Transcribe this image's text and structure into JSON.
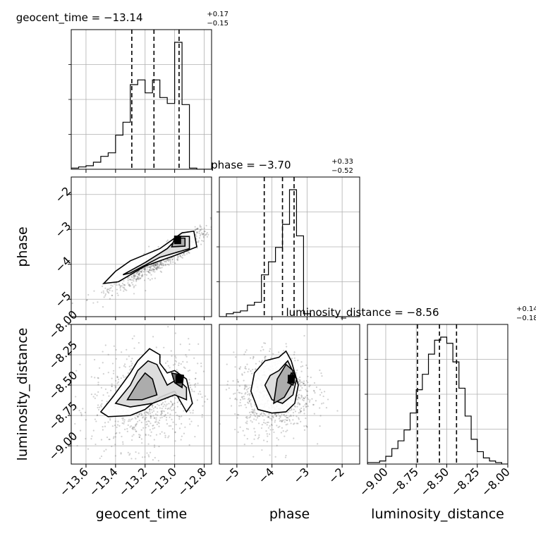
{
  "chart_data": {
    "type": "corner",
    "parameters": [
      "geocent_time",
      "phase",
      "luminosity_distance"
    ],
    "axis_labels": [
      "geocent_time",
      "phase",
      "luminosity_distance"
    ],
    "ranges": [
      [
        -13.7,
        -12.75
      ],
      [
        -5.5,
        -1.5
      ],
      [
        -9.15,
        -8.0
      ]
    ],
    "ticks": [
      {
        "values": [
          -13.6,
          -13.4,
          -13.2,
          -13.0,
          -12.8
        ],
        "labels": [
          "−13.6",
          "−13.4",
          "−13.2",
          "−13.0",
          "−12.8"
        ]
      },
      {
        "values": [
          -5,
          -4,
          -3,
          -2
        ],
        "labels": [
          "−5",
          "−4",
          "−3",
          "−2"
        ]
      },
      {
        "values": [
          -9.0,
          -8.75,
          -8.5,
          -8.25,
          -8.0
        ],
        "labels": [
          "−9.00",
          "−8.75",
          "−8.50",
          "−8.25",
          "−8.00"
        ]
      }
    ],
    "titles": [
      {
        "prefix": "geocent_time = −13.14",
        "sup": "+0.17",
        "sub": "−0.15"
      },
      {
        "prefix": "phase = −3.70",
        "sup": "+0.33",
        "sub": "−0.52"
      },
      {
        "prefix": "luminosity_distance = −8.56",
        "sup": "+0.14",
        "sub": "−0.18"
      }
    ],
    "quantiles": [
      [
        -13.29,
        -13.14,
        -12.97
      ],
      [
        -4.22,
        -3.7,
        -3.37
      ],
      [
        -8.74,
        -8.56,
        -8.42
      ]
    ],
    "histograms": [
      {
        "edges": [
          -13.7,
          -13.65,
          -13.6,
          -13.55,
          -13.5,
          -13.45,
          -13.4,
          -13.35,
          -13.3,
          -13.25,
          -13.2,
          -13.15,
          -13.1,
          -13.05,
          -13.0,
          -12.95,
          -12.9,
          -12.85,
          -12.8,
          -12.75
        ],
        "counts": [
          1,
          2,
          3,
          6,
          11,
          14,
          29,
          40,
          72,
          76,
          65,
          76,
          61,
          56,
          108,
          55,
          1,
          0,
          0
        ]
      },
      {
        "edges": [
          -5.5,
          -5.3,
          -5.1,
          -4.9,
          -4.7,
          -4.5,
          -4.3,
          -4.1,
          -3.9,
          -3.7,
          -3.5,
          -3.3,
          -3.1,
          -2.9,
          -2.7,
          -2.5,
          -2.3,
          -2.1,
          -1.9,
          -1.7,
          -1.5
        ],
        "counts": [
          0,
          2,
          3,
          4,
          8,
          10,
          29,
          38,
          48,
          64,
          88,
          56,
          2,
          0,
          0,
          0,
          0,
          0,
          0,
          0
        ]
      },
      {
        "edges": [
          -9.15,
          -9.1,
          -9.05,
          -9.0,
          -8.95,
          -8.9,
          -8.85,
          -8.8,
          -8.75,
          -8.7,
          -8.65,
          -8.6,
          -8.55,
          -8.5,
          -8.45,
          -8.4,
          -8.35,
          -8.3,
          -8.25,
          -8.2,
          -8.15,
          -8.1,
          -8.05,
          -8.0
        ],
        "counts": [
          1,
          1,
          2,
          5,
          10,
          15,
          22,
          33,
          48,
          58,
          71,
          80,
          82,
          78,
          66,
          49,
          31,
          16,
          8,
          4,
          2,
          1,
          0
        ]
      }
    ],
    "scatter": [
      {
        "x": 0,
        "y": 1,
        "mean": [
          -13.1,
          -3.85
        ],
        "sd": [
          0.17,
          0.45
        ],
        "corr": 0.93,
        "count": 900
      },
      {
        "x": 0,
        "y": 2,
        "mean": [
          -13.2,
          -8.62
        ],
        "sd": [
          0.18,
          0.2
        ],
        "corr": 0.15,
        "count": 900
      },
      {
        "x": 1,
        "y": 2,
        "mean": [
          -3.95,
          -8.57
        ],
        "sd": [
          0.55,
          0.17
        ],
        "corr": 0.05,
        "count": 900
      }
    ],
    "density_peaks": [
      {
        "x": 0,
        "y": 1,
        "at": [
          -12.98,
          -3.3
        ]
      },
      {
        "x": 0,
        "y": 2,
        "at": [
          -12.97,
          -8.45
        ]
      },
      {
        "x": 1,
        "y": 2,
        "at": [
          -3.45,
          -8.45
        ]
      }
    ],
    "contours": [
      {
        "x": 0,
        "y": 1,
        "levels": [
          [
            [
              -13.48,
              -4.55
            ],
            [
              -13.4,
              -4.2
            ],
            [
              -13.3,
              -3.9
            ],
            [
              -13.1,
              -3.55
            ],
            [
              -12.95,
              -3.1
            ],
            [
              -12.87,
              -3.05
            ],
            [
              -12.85,
              -3.5
            ],
            [
              -13.0,
              -3.75
            ],
            [
              -13.2,
              -4.05
            ],
            [
              -13.38,
              -4.5
            ]
          ],
          [
            [
              -13.35,
              -4.3
            ],
            [
              -13.2,
              -3.95
            ],
            [
              -13.05,
              -3.55
            ],
            [
              -12.97,
              -3.2
            ],
            [
              -12.9,
              -3.2
            ],
            [
              -12.9,
              -3.55
            ],
            [
              -13.1,
              -3.8
            ],
            [
              -13.3,
              -4.25
            ]
          ],
          [
            [
              -13.02,
              -3.5
            ],
            [
              -13.0,
              -3.25
            ],
            [
              -12.93,
              -3.25
            ],
            [
              -12.93,
              -3.48
            ]
          ]
        ]
      },
      {
        "x": 0,
        "y": 2,
        "levels": [
          [
            [
              -13.5,
              -8.72
            ],
            [
              -13.42,
              -8.6
            ],
            [
              -13.3,
              -8.4
            ],
            [
              -13.25,
              -8.3
            ],
            [
              -13.17,
              -8.2
            ],
            [
              -13.1,
              -8.25
            ],
            [
              -13.1,
              -8.32
            ],
            [
              -13.05,
              -8.4
            ],
            [
              -13.0,
              -8.38
            ],
            [
              -12.92,
              -8.45
            ],
            [
              -12.88,
              -8.65
            ],
            [
              -12.92,
              -8.72
            ],
            [
              -13.0,
              -8.55
            ],
            [
              -13.1,
              -8.6
            ],
            [
              -13.2,
              -8.7
            ],
            [
              -13.3,
              -8.75
            ],
            [
              -13.45,
              -8.76
            ]
          ],
          [
            [
              -13.4,
              -8.65
            ],
            [
              -13.3,
              -8.5
            ],
            [
              -13.25,
              -8.38
            ],
            [
              -13.18,
              -8.3
            ],
            [
              -13.12,
              -8.33
            ],
            [
              -13.05,
              -8.5
            ],
            [
              -12.98,
              -8.45
            ],
            [
              -12.92,
              -8.52
            ],
            [
              -12.92,
              -8.62
            ],
            [
              -13.0,
              -8.58
            ],
            [
              -13.15,
              -8.65
            ],
            [
              -13.3,
              -8.68
            ]
          ],
          [
            [
              -13.32,
              -8.62
            ],
            [
              -13.25,
              -8.48
            ],
            [
              -13.2,
              -8.4
            ],
            [
              -13.15,
              -8.45
            ],
            [
              -13.12,
              -8.58
            ],
            [
              -13.22,
              -8.62
            ]
          ],
          [
            [
              -13.02,
              -8.4
            ],
            [
              -13.0,
              -8.48
            ],
            [
              -12.95,
              -8.52
            ],
            [
              -12.94,
              -8.42
            ]
          ]
        ]
      },
      {
        "x": 1,
        "y": 2,
        "levels": [
          [
            [
              -4.6,
              -8.55
            ],
            [
              -4.5,
              -8.4
            ],
            [
              -4.2,
              -8.3
            ],
            [
              -3.8,
              -8.27
            ],
            [
              -3.6,
              -8.22
            ],
            [
              -3.45,
              -8.3
            ],
            [
              -3.25,
              -8.5
            ],
            [
              -3.35,
              -8.65
            ],
            [
              -3.6,
              -8.72
            ],
            [
              -4.0,
              -8.73
            ],
            [
              -4.4,
              -8.7
            ]
          ],
          [
            [
              -4.2,
              -8.5
            ],
            [
              -4.05,
              -8.42
            ],
            [
              -3.8,
              -8.38
            ],
            [
              -3.55,
              -8.3
            ],
            [
              -3.3,
              -8.45
            ],
            [
              -3.4,
              -8.58
            ],
            [
              -3.7,
              -8.65
            ],
            [
              -4.0,
              -8.62
            ]
          ],
          [
            [
              -3.95,
              -8.65
            ],
            [
              -3.85,
              -8.45
            ],
            [
              -3.6,
              -8.33
            ],
            [
              -3.4,
              -8.38
            ],
            [
              -3.45,
              -8.5
            ],
            [
              -3.65,
              -8.6
            ]
          ],
          [
            [
              -3.55,
              -8.48
            ],
            [
              -3.45,
              -8.4
            ],
            [
              -3.35,
              -8.43
            ],
            [
              -3.4,
              -8.5
            ]
          ]
        ]
      }
    ],
    "grid": true
  }
}
